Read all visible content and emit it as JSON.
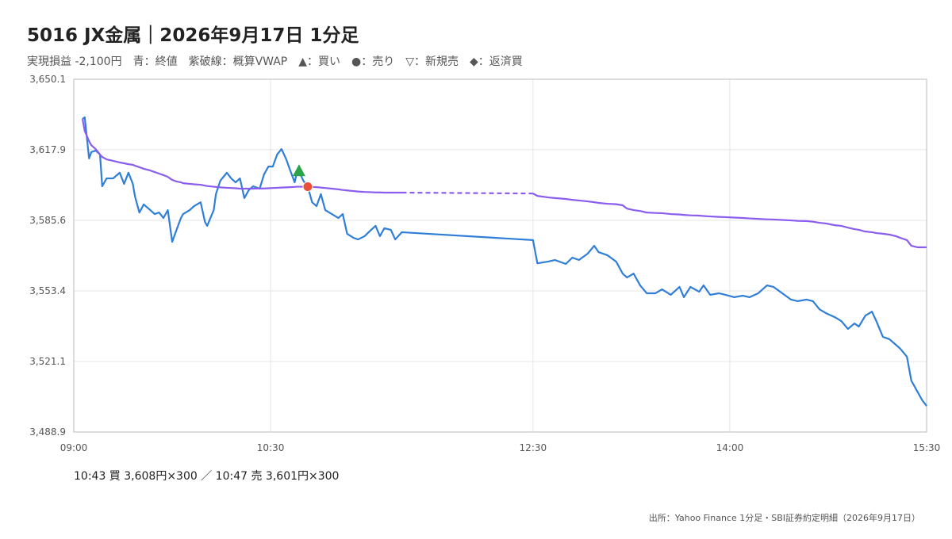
{
  "chart_data": {
    "type": "line",
    "title": "5016 JX金属｜2026年9月17日 1分足",
    "subtitle": "実現損益 -2,100円　青：終値　紫破線：概算VWAP　▲：買い　●：売り　▽：新規売　◆：返済買",
    "trade_note": "10:43 買 3,608円×300 ／ 10:47 売 3,601円×300",
    "source": "出所：Yahoo Finance 1分足・SBI証券約定明細（2026年9月17日）",
    "x": [
      "09:04",
      "09:05",
      "09:07",
      "09:08",
      "09:10",
      "09:12",
      "09:13",
      "09:15",
      "09:18",
      "09:21",
      "09:23",
      "09:25",
      "09:27",
      "09:28",
      "09:30",
      "09:32",
      "09:35",
      "09:37",
      "09:39",
      "09:41",
      "09:43",
      "09:44",
      "09:45",
      "09:47",
      "09:49",
      "09:50",
      "09:53",
      "09:55",
      "09:58",
      "10:00",
      "10:01",
      "10:04",
      "10:05",
      "10:07",
      "10:10",
      "10:12",
      "10:14",
      "10:16",
      "10:18",
      "10:20",
      "10:22",
      "10:25",
      "10:27",
      "10:29",
      "10:31",
      "10:33",
      "10:35",
      "10:37",
      "10:39",
      "10:41",
      "10:42",
      "10:43",
      "10:45",
      "10:47",
      "10:49",
      "10:51",
      "10:53",
      "10:55",
      "10:58",
      "11:01",
      "11:03",
      "11:05",
      "11:08",
      "11:10",
      "11:13",
      "11:16",
      "11:18",
      "11:20",
      "11:22",
      "11:25",
      "11:27",
      "11:30",
      "12:30",
      "12:32",
      "12:37",
      "12:40",
      "12:45",
      "12:48",
      "12:51",
      "12:55",
      "12:58",
      "13:00",
      "13:04",
      "13:08",
      "13:11",
      "13:13",
      "13:16",
      "13:19",
      "13:22",
      "13:26",
      "13:29",
      "13:33",
      "13:37",
      "13:39",
      "13:42",
      "13:46",
      "13:48",
      "13:51",
      "13:55",
      "13:58",
      "14:02",
      "14:06",
      "14:09",
      "14:13",
      "14:17",
      "14:20",
      "14:24",
      "14:28",
      "14:31",
      "14:35",
      "14:38",
      "14:41",
      "14:44",
      "14:48",
      "14:51",
      "14:54",
      "14:57",
      "14:59",
      "15:02",
      "15:05",
      "15:07",
      "15:10",
      "15:13",
      "15:16",
      "15:18",
      "15:21",
      "15:23",
      "15:26",
      "15:28",
      "15:30"
    ],
    "series": [
      {
        "color": "#2f7ed8",
        "values": [
          3632.0,
          3632.7,
          3613.9,
          3616.8,
          3617.5,
          3615.7,
          3601.2,
          3604.8,
          3604.8,
          3607.4,
          3602.3,
          3607.4,
          3602.3,
          3596.5,
          3589.2,
          3592.9,
          3590.3,
          3588.5,
          3589.2,
          3586.7,
          3590.3,
          3583.1,
          3575.8,
          3581.3,
          3586.7,
          3588.5,
          3590.3,
          3592.1,
          3593.9,
          3584.9,
          3583.1,
          3590.3,
          3597.6,
          3603.7,
          3607.4,
          3604.8,
          3603.0,
          3604.8,
          3595.8,
          3599.4,
          3601.2,
          3600.1,
          3606.6,
          3610.2,
          3610.2,
          3615.7,
          3618.2,
          3613.9,
          3608.4,
          3603.0,
          3607.4,
          3608.0,
          3603.7,
          3601.0,
          3593.9,
          3592.1,
          3597.6,
          3590.3,
          3588.5,
          3586.7,
          3588.5,
          3579.5,
          3577.6,
          3576.9,
          3578.4,
          3581.3,
          3583.1,
          3578.4,
          3582.0,
          3581.3,
          3576.9,
          3580.2,
          3576.6,
          3566.0,
          3566.8,
          3567.5,
          3565.7,
          3568.6,
          3567.5,
          3570.4,
          3574.0,
          3571.1,
          3569.7,
          3566.8,
          3561.3,
          3559.5,
          3561.3,
          3555.9,
          3552.3,
          3552.3,
          3554.1,
          3551.6,
          3555.2,
          3550.5,
          3555.2,
          3553.0,
          3555.9,
          3551.6,
          3552.3,
          3551.6,
          3550.5,
          3551.2,
          3550.5,
          3552.3,
          3555.9,
          3555.2,
          3552.3,
          3549.4,
          3548.7,
          3549.4,
          3548.7,
          3545.0,
          3543.2,
          3541.4,
          3539.6,
          3536.0,
          3538.5,
          3537.1,
          3542.1,
          3543.9,
          3539.6,
          3532.4,
          3531.3,
          3528.7,
          3526.9,
          3523.3,
          3512.4,
          3507.0,
          3503.4,
          3500.8
        ]
      },
      {
        "color": "#8a5cf0",
        "gap_style": "dashed",
        "values": [
          3632.0,
          3626.5,
          3621.8,
          3620.0,
          3618.2,
          3615.7,
          3614.6,
          3613.5,
          3612.8,
          3612.1,
          3611.7,
          3611.3,
          3611.0,
          3610.6,
          3609.9,
          3609.2,
          3608.4,
          3607.7,
          3607.0,
          3606.3,
          3605.5,
          3604.8,
          3604.1,
          3603.4,
          3603.0,
          3602.6,
          3602.3,
          3602.1,
          3601.9,
          3601.5,
          3601.3,
          3601.0,
          3600.9,
          3600.7,
          3600.5,
          3600.4,
          3600.3,
          3600.1,
          3600.1,
          3600.1,
          3600.1,
          3600.2,
          3600.2,
          3600.3,
          3600.4,
          3600.5,
          3600.6,
          3600.7,
          3600.8,
          3600.9,
          3601.0,
          3601.0,
          3601.0,
          3601.0,
          3600.9,
          3600.8,
          3600.6,
          3600.4,
          3600.1,
          3599.8,
          3599.5,
          3599.3,
          3599.0,
          3598.8,
          3598.6,
          3598.5,
          3598.4,
          3598.4,
          3598.3,
          3598.3,
          3598.3,
          3598.3,
          3597.9,
          3596.8,
          3596.1,
          3595.8,
          3595.4,
          3595.0,
          3594.7,
          3594.3,
          3593.9,
          3593.6,
          3593.2,
          3593.0,
          3592.5,
          3591.0,
          3590.3,
          3589.9,
          3589.2,
          3589.0,
          3588.9,
          3588.5,
          3588.3,
          3588.1,
          3587.9,
          3587.8,
          3587.6,
          3587.4,
          3587.2,
          3587.1,
          3586.9,
          3586.7,
          3586.5,
          3586.3,
          3586.1,
          3586.0,
          3585.8,
          3585.6,
          3585.4,
          3585.3,
          3585.0,
          3584.5,
          3584.2,
          3583.4,
          3583.1,
          3582.3,
          3581.6,
          3581.3,
          3580.5,
          3580.2,
          3579.8,
          3579.5,
          3579.1,
          3578.4,
          3577.6,
          3576.6,
          3574.0,
          3573.3,
          3573.3,
          3573.3
        ]
      }
    ],
    "trades": [
      {
        "x": "10:43",
        "value": 3608,
        "shape": "triangle",
        "color": "#2ca44a"
      },
      {
        "x": "10:47",
        "value": 3601,
        "shape": "circle",
        "color": "#e8503a"
      }
    ],
    "xlim": [
      "09:00",
      "15:30"
    ],
    "xticks": [
      "09:00",
      "10:30",
      "12:30",
      "14:00",
      "15:30"
    ],
    "ylim": [
      3488.9,
      3650.1
    ],
    "yticks": [
      {
        "value": 3488.9,
        "label": "3,488.9"
      },
      {
        "value": 3521.1,
        "label": "3,521.1"
      },
      {
        "value": 3553.4,
        "label": "3,553.4"
      },
      {
        "value": 3585.6,
        "label": "3,585.6"
      },
      {
        "value": 3617.9,
        "label": "3,617.9"
      },
      {
        "value": 3650.1,
        "label": "3,650.1"
      }
    ],
    "grid": true
  }
}
